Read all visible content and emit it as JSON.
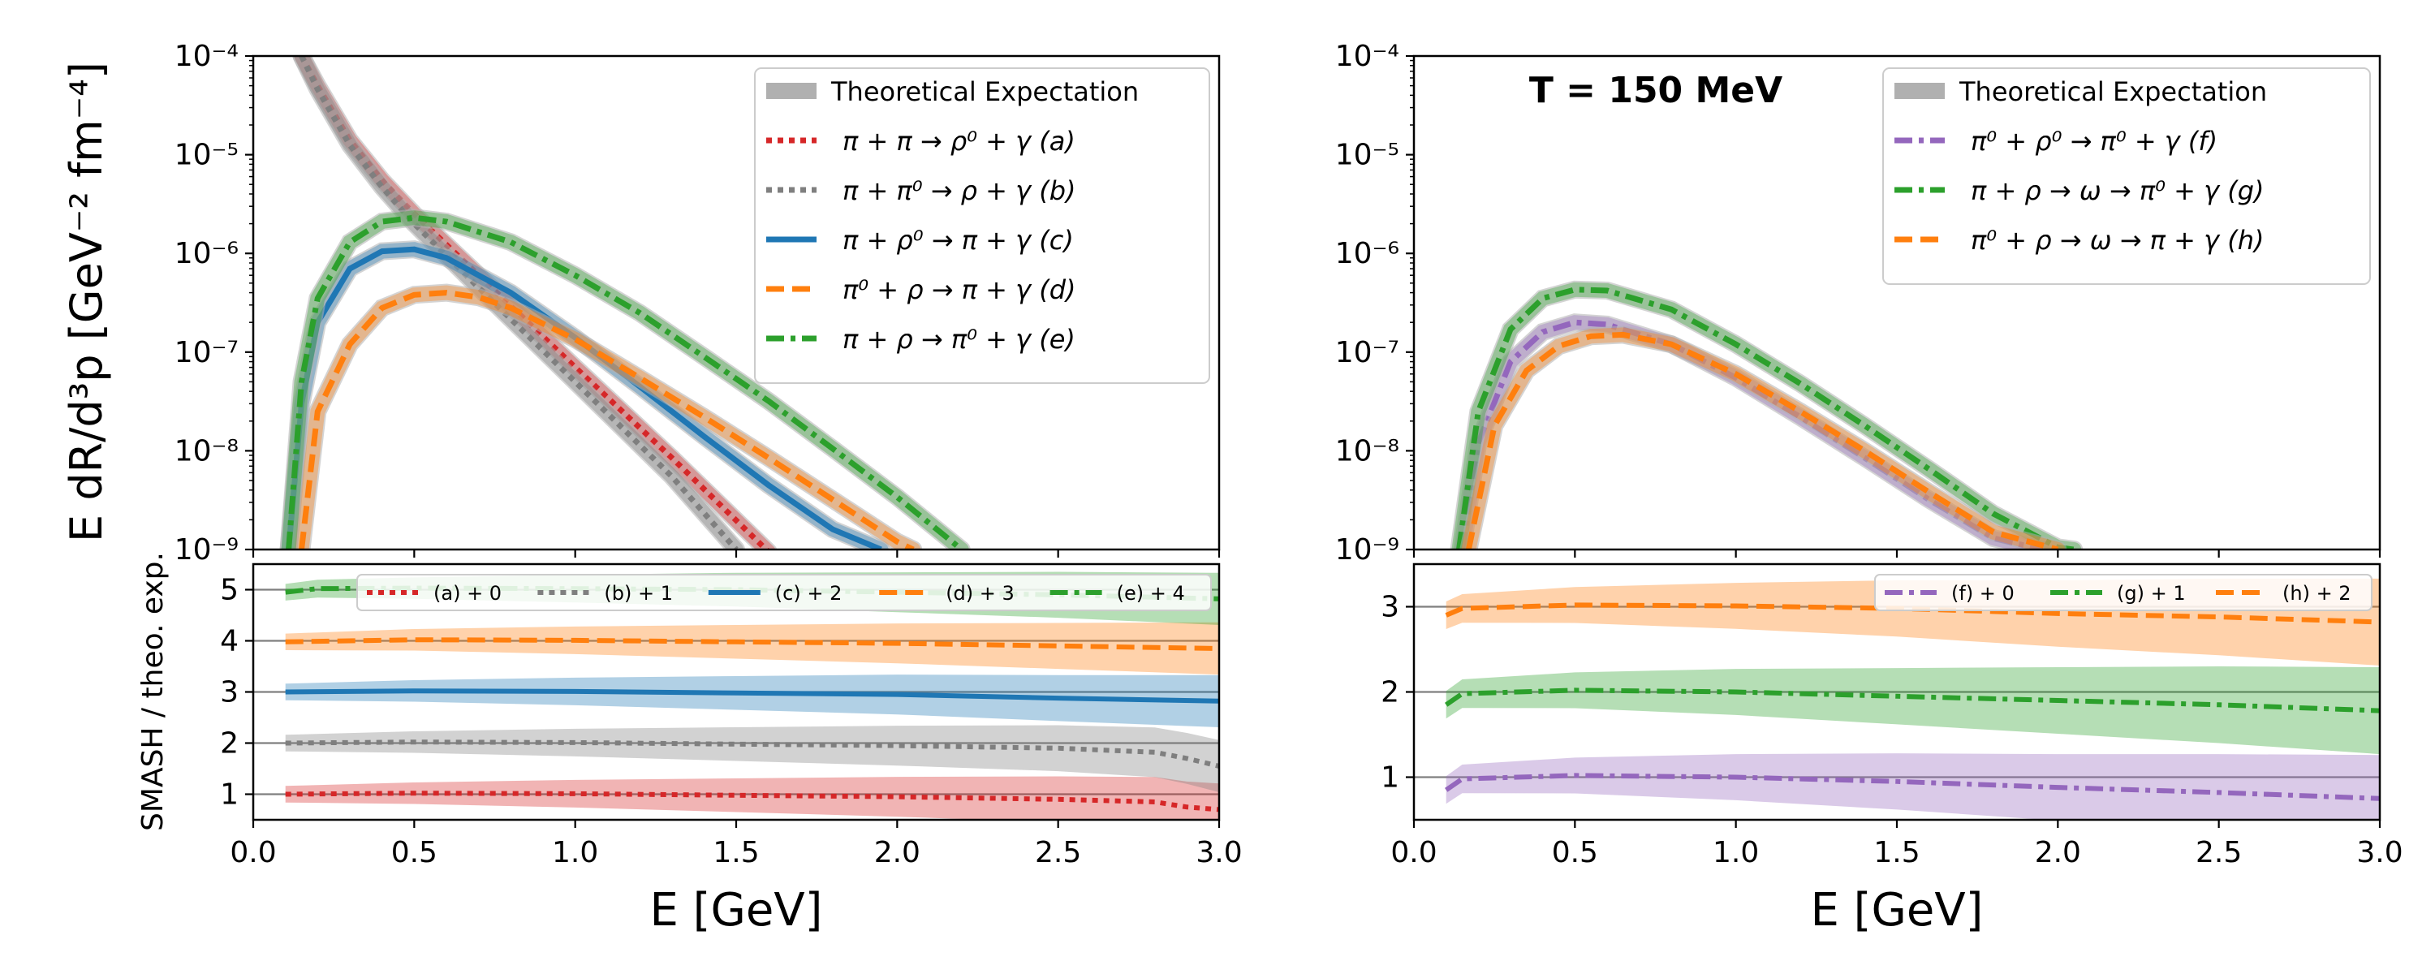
{
  "figure": {
    "y_axis_label": "E dR/d³p  [GeV⁻² fm⁻⁴]",
    "x_axis_label": "E   [GeV]",
    "ratio_axis_label": "SMASH / theo. exp.",
    "annotation": "T = 150 MeV"
  },
  "colors": {
    "red": "#d62728",
    "gray": "#7f7f7f",
    "blue": "#1f77b4",
    "orange": "#ff7f0e",
    "green": "#2ca02c",
    "purple": "#9467bd",
    "theory": "#b0b0b0"
  },
  "chart_data": [
    {
      "panel": "left-top",
      "type": "line",
      "yscale": "log",
      "xlim": [
        0,
        3
      ],
      "ylim": [
        1e-09,
        0.0001
      ],
      "xticks": [
        "0.0",
        "0.5",
        "1.0",
        "1.5",
        "2.0",
        "2.5",
        "3.0"
      ],
      "yticks": [
        "10⁻⁹",
        "10⁻⁸",
        "10⁻⁷",
        "10⁻⁶",
        "10⁻⁵",
        "10⁻⁴"
      ],
      "legend_position": "top-right",
      "legend_theory": "Theoretical Expectation",
      "series": [
        {
          "id": "a",
          "name": "π + π → ρ⁰ + γ    (a)",
          "color": "red",
          "dash": "dotted",
          "x": [
            0.15,
            0.2,
            0.3,
            0.4,
            0.5,
            0.7,
            1.0,
            1.3,
            1.6
          ],
          "y": [
            0.0001,
            5e-05,
            1.4e-05,
            5.5e-06,
            2.5e-06,
            6e-07,
            7e-08,
            8.5e-09,
            9.5e-10
          ]
        },
        {
          "id": "b",
          "name": "π + π⁰ → ρ + γ    (b)",
          "color": "gray",
          "dash": "dotted",
          "x": [
            0.15,
            0.2,
            0.3,
            0.4,
            0.5,
            0.7,
            1.0,
            1.3,
            1.5
          ],
          "y": [
            0.0001,
            4.6e-05,
            1.25e-05,
            4.7e-06,
            2e-06,
            4.5e-07,
            5e-08,
            5.5e-09,
            1e-09
          ]
        },
        {
          "id": "c",
          "name": "π + ρ⁰ → π + γ    (c)",
          "color": "blue",
          "dash": "solid",
          "x": [
            0.11,
            0.15,
            0.2,
            0.3,
            0.4,
            0.5,
            0.6,
            0.8,
            1.0,
            1.2,
            1.4,
            1.6,
            1.8,
            1.95
          ],
          "y": [
            1e-09,
            3e-08,
            2e-07,
            7e-07,
            1.05e-06,
            1.1e-06,
            9e-07,
            4e-07,
            1.4e-07,
            4.5e-08,
            1.4e-08,
            4.5e-09,
            1.6e-09,
            1e-09
          ]
        },
        {
          "id": "d",
          "name": "π⁰ + ρ → π + γ    (d)",
          "color": "orange",
          "dash": "dashed",
          "x": [
            0.15,
            0.2,
            0.3,
            0.4,
            0.5,
            0.6,
            0.7,
            0.8,
            1.0,
            1.2,
            1.4,
            1.6,
            1.8,
            2.0,
            2.05
          ],
          "y": [
            1e-09,
            2.5e-08,
            1.2e-07,
            2.8e-07,
            3.8e-07,
            4e-07,
            3.6e-07,
            2.8e-07,
            1.35e-07,
            5.5e-08,
            2.2e-08,
            8.5e-09,
            3.2e-09,
            1.2e-09,
            1e-09
          ]
        },
        {
          "id": "e",
          "name": "π + ρ → π⁰ + γ    (e)",
          "color": "green",
          "dash": "dashdot",
          "x": [
            0.11,
            0.15,
            0.2,
            0.3,
            0.4,
            0.5,
            0.6,
            0.8,
            1.0,
            1.2,
            1.4,
            1.6,
            1.8,
            2.0,
            2.2
          ],
          "y": [
            1e-09,
            5e-08,
            3.5e-07,
            1.3e-06,
            2.1e-06,
            2.3e-06,
            2.1e-06,
            1.3e-06,
            6e-07,
            2.5e-07,
            9e-08,
            3.2e-08,
            1.05e-08,
            3.4e-09,
            1e-09
          ]
        }
      ]
    },
    {
      "panel": "left-bottom",
      "type": "line",
      "xlim": [
        0,
        3
      ],
      "ylim": [
        0.5,
        5.5
      ],
      "yticks": [
        "1",
        "2",
        "3",
        "4",
        "5"
      ],
      "legend_position": "top",
      "reference_lines": [
        1,
        2,
        3,
        4,
        5
      ],
      "series": [
        {
          "id": "a",
          "name": "(a) + 0",
          "color": "red",
          "dash": "dotted",
          "x": [
            0.1,
            0.5,
            1.0,
            1.5,
            2.0,
            2.5,
            2.8,
            2.9,
            3.0
          ],
          "y": [
            1.0,
            1.02,
            1.01,
            0.98,
            0.95,
            0.9,
            0.85,
            0.75,
            0.7
          ]
        },
        {
          "id": "b",
          "name": "(b) + 1",
          "color": "gray",
          "dash": "dotted",
          "x": [
            0.1,
            0.5,
            1.0,
            1.5,
            2.0,
            2.5,
            2.8,
            2.9,
            3.0
          ],
          "y": [
            2.0,
            2.02,
            2.01,
            1.98,
            1.95,
            1.9,
            1.82,
            1.7,
            1.55
          ]
        },
        {
          "id": "c",
          "name": "(c) + 2",
          "color": "blue",
          "dash": "solid",
          "x": [
            0.1,
            0.5,
            1.0,
            1.5,
            2.0,
            2.5,
            3.0
          ],
          "y": [
            3.0,
            3.02,
            3.01,
            2.98,
            2.95,
            2.88,
            2.82
          ]
        },
        {
          "id": "d",
          "name": "(d) + 3",
          "color": "orange",
          "dash": "dashed",
          "x": [
            0.1,
            0.5,
            1.0,
            1.5,
            2.0,
            2.5,
            3.0
          ],
          "y": [
            3.98,
            4.02,
            4.01,
            3.98,
            3.95,
            3.9,
            3.85
          ]
        },
        {
          "id": "e",
          "name": "(e) + 4",
          "color": "green",
          "dash": "dashdot",
          "x": [
            0.1,
            0.2,
            0.5,
            1.0,
            1.5,
            2.0,
            2.5,
            3.0
          ],
          "y": [
            4.95,
            5.02,
            5.03,
            5.02,
            5.0,
            4.95,
            4.9,
            4.82
          ]
        }
      ]
    },
    {
      "panel": "right-top",
      "type": "line",
      "yscale": "log",
      "xlim": [
        0,
        3
      ],
      "ylim": [
        1e-09,
        0.0001
      ],
      "xticks": [
        "0.0",
        "0.5",
        "1.0",
        "1.5",
        "2.0",
        "2.5",
        "3.0"
      ],
      "yticks": [
        "10⁻⁹",
        "10⁻⁸",
        "10⁻⁷",
        "10⁻⁶",
        "10⁻⁵",
        "10⁻⁴"
      ],
      "legend_position": "top-right",
      "legend_theory": "Theoretical Expectation",
      "series": [
        {
          "id": "f",
          "name": "π⁰ + ρ⁰ → π⁰ + γ    (f)",
          "color": "purple",
          "dash": "dashdot",
          "x": [
            0.15,
            0.2,
            0.3,
            0.4,
            0.5,
            0.6,
            0.8,
            1.0,
            1.2,
            1.4,
            1.6,
            1.8,
            1.95
          ],
          "y": [
            1e-09,
            1.2e-08,
            8e-08,
            1.6e-07,
            2e-07,
            1.9e-07,
            1.2e-07,
            5.5e-08,
            2.2e-08,
            8.5e-09,
            3.2e-09,
            1.3e-09,
            1e-09
          ]
        },
        {
          "id": "g",
          "name": "π + ρ → ω → π⁰ + γ    (g)",
          "color": "green",
          "dash": "dashdot",
          "x": [
            0.14,
            0.2,
            0.3,
            0.4,
            0.5,
            0.6,
            0.8,
            1.0,
            1.2,
            1.4,
            1.6,
            1.8,
            2.0,
            2.05
          ],
          "y": [
            1e-09,
            2.5e-08,
            1.7e-07,
            3.5e-07,
            4.3e-07,
            4.2e-07,
            2.7e-07,
            1.2e-07,
            4.8e-08,
            1.8e-08,
            6.5e-09,
            2.3e-09,
            1.05e-09,
            1e-09
          ]
        },
        {
          "id": "h",
          "name": "π⁰ + ρ → ω → π + γ    (h)",
          "color": "orange",
          "dash": "dashed",
          "x": [
            0.17,
            0.25,
            0.35,
            0.45,
            0.55,
            0.65,
            0.8,
            1.0,
            1.2,
            1.4,
            1.6,
            1.8,
            2.0
          ],
          "y": [
            1e-09,
            1.8e-08,
            6.5e-08,
            1.15e-07,
            1.45e-07,
            1.5e-07,
            1.2e-07,
            6e-08,
            2.5e-08,
            1e-08,
            3.8e-09,
            1.5e-09,
            1e-09
          ]
        }
      ]
    },
    {
      "panel": "right-bottom",
      "type": "line",
      "xlim": [
        0,
        3
      ],
      "ylim": [
        0.5,
        3.5
      ],
      "yticks": [
        "1",
        "2",
        "3"
      ],
      "legend_position": "top-right",
      "reference_lines": [
        1,
        2,
        3
      ],
      "series": [
        {
          "id": "f",
          "name": "(f) + 0",
          "color": "purple",
          "dash": "dashdot",
          "x": [
            0.1,
            0.15,
            0.5,
            1.0,
            1.5,
            2.0,
            2.5,
            3.0
          ],
          "y": [
            0.85,
            0.98,
            1.02,
            1.0,
            0.95,
            0.88,
            0.82,
            0.75
          ]
        },
        {
          "id": "g",
          "name": "(g) + 1",
          "color": "green",
          "dash": "dashdot",
          "x": [
            0.1,
            0.15,
            0.5,
            1.0,
            1.5,
            2.0,
            2.5,
            3.0
          ],
          "y": [
            1.85,
            1.98,
            2.02,
            2.0,
            1.95,
            1.9,
            1.85,
            1.78
          ]
        },
        {
          "id": "h",
          "name": "(h) + 2",
          "color": "orange",
          "dash": "dashed",
          "x": [
            0.1,
            0.15,
            0.5,
            1.0,
            1.5,
            2.0,
            2.5,
            3.0
          ],
          "y": [
            2.9,
            2.98,
            3.02,
            3.01,
            2.98,
            2.92,
            2.88,
            2.82
          ]
        }
      ]
    }
  ]
}
